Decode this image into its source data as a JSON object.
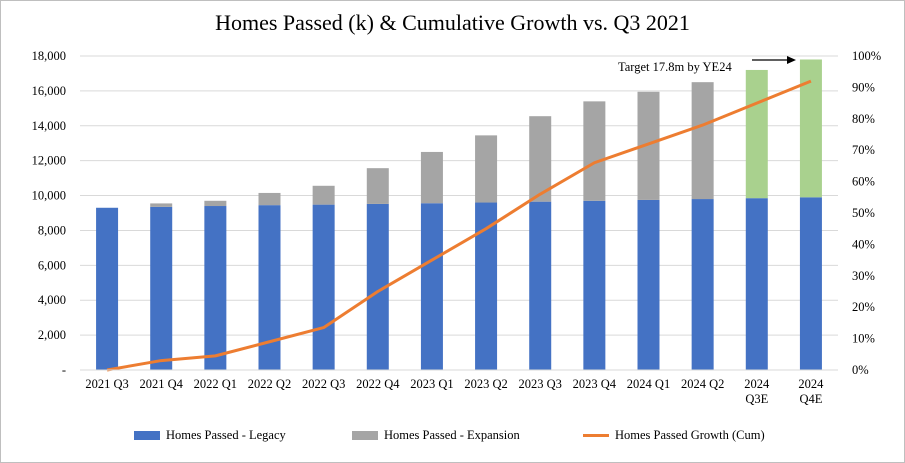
{
  "chart_data": {
    "type": "bar",
    "title": "Homes Passed (k) & Cumulative Growth vs. Q3 2021",
    "categories": [
      [
        "2021 Q3"
      ],
      [
        "2021 Q4"
      ],
      [
        "2022 Q1"
      ],
      [
        "2022 Q2"
      ],
      [
        "2022 Q3"
      ],
      [
        "2022 Q4"
      ],
      [
        "2023 Q1"
      ],
      [
        "2023 Q2"
      ],
      [
        "2023 Q3"
      ],
      [
        "2023 Q4"
      ],
      [
        "2024 Q1"
      ],
      [
        "2024 Q2"
      ],
      [
        "2024",
        "Q3E"
      ],
      [
        "2024",
        "Q4E"
      ]
    ],
    "y_left": {
      "ticks": [
        "-",
        "2,000",
        "4,000",
        "6,000",
        "8,000",
        "10,000",
        "12,000",
        "14,000",
        "16,000",
        "18,000"
      ],
      "ylim": [
        0,
        18000
      ]
    },
    "y_right": {
      "ticks": [
        "0%",
        "10%",
        "20%",
        "30%",
        "40%",
        "50%",
        "60%",
        "70%",
        "80%",
        "90%",
        "100%"
      ],
      "ylim": [
        0,
        1.0
      ]
    },
    "series": [
      {
        "name": "Homes Passed - Legacy",
        "kind": "bar",
        "color": "#4472c4",
        "values": [
          9300,
          9350,
          9400,
          9450,
          9480,
          9520,
          9560,
          9600,
          9650,
          9700,
          9750,
          9800,
          9850,
          9900
        ]
      },
      {
        "name": "Homes Passed - Expansion",
        "kind": "bar",
        "color": "#a5a5a5",
        "values": [
          0,
          200,
          300,
          700,
          1080,
          2050,
          2940,
          3850,
          4900,
          5700,
          6200,
          6700,
          0,
          0
        ]
      },
      {
        "name": "",
        "kind": "bar",
        "color": "#a9d18e",
        "values": [
          0,
          0,
          0,
          0,
          0,
          0,
          0,
          0,
          0,
          0,
          0,
          0,
          7350,
          7900
        ]
      },
      {
        "name": "Homes Passed Growth (Cum)",
        "kind": "line",
        "axis": "right",
        "color": "#ed7d31",
        "values": [
          0.0,
          0.03,
          0.045,
          0.09,
          0.135,
          0.25,
          0.35,
          0.45,
          0.56,
          0.66,
          0.72,
          0.78,
          0.85,
          0.92
        ]
      }
    ],
    "annotation": "Target 17.8m by YE24",
    "legend_position": "bottom",
    "grid": true
  }
}
